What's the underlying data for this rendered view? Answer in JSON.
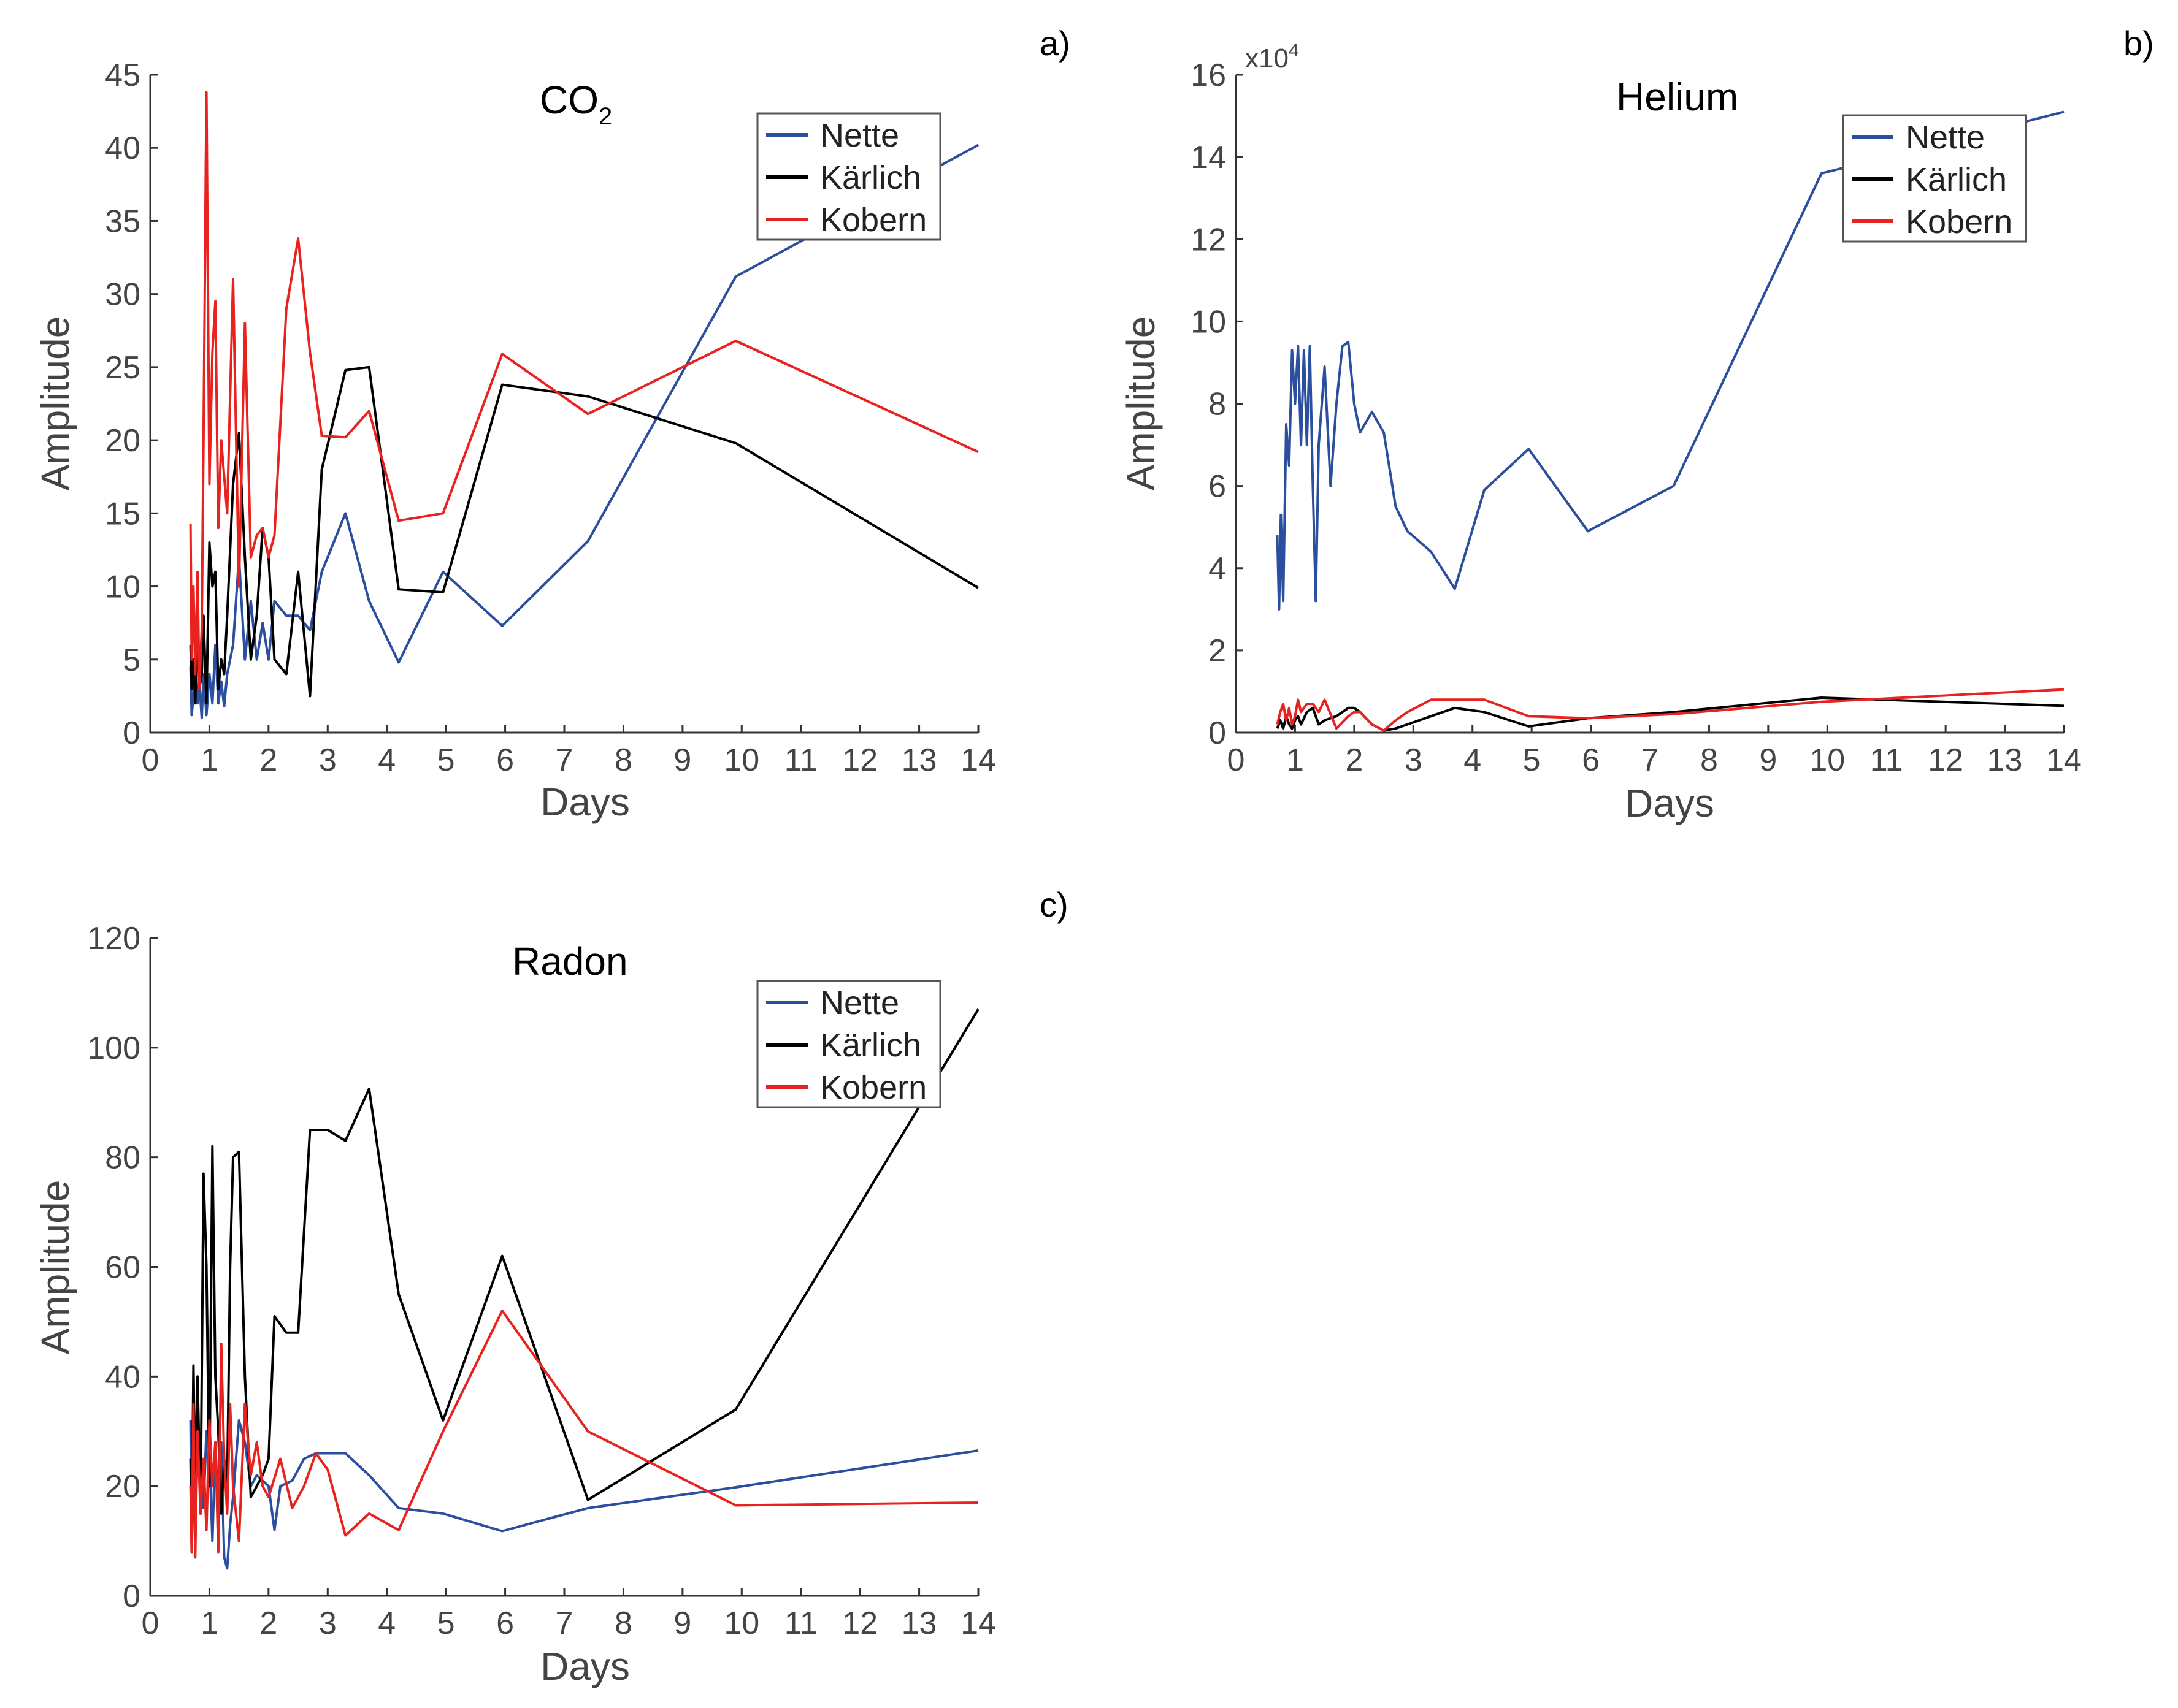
{
  "colors": {
    "nette": "#2b4f9e",
    "karlich": "#000000",
    "kobern": "#e8231f",
    "axis": "#333333",
    "tick_text": "#444444"
  },
  "chart_data": [
    {
      "panel_label": "a)",
      "type": "line",
      "title_main": "CO",
      "title_sub": "2",
      "xlabel": "Days",
      "ylabel": "Amplitude",
      "xlim": [
        0,
        14
      ],
      "ylim": [
        0,
        45
      ],
      "xticks": [
        0,
        1,
        2,
        3,
        4,
        5,
        6,
        7,
        8,
        9,
        10,
        11,
        12,
        13,
        14
      ],
      "yticks": [
        0,
        5,
        10,
        15,
        20,
        25,
        30,
        35,
        40,
        45
      ],
      "y_exponent": "",
      "legend_position": "top-right",
      "series": [
        {
          "name": "Nette",
          "color_key": "nette",
          "x": [
            0.68,
            0.7,
            0.73,
            0.76,
            0.8,
            0.83,
            0.87,
            0.9,
            0.95,
            1.0,
            1.05,
            1.1,
            1.15,
            1.2,
            1.25,
            1.3,
            1.4,
            1.5,
            1.6,
            1.7,
            1.8,
            1.9,
            2.0,
            2.1,
            2.3,
            2.5,
            2.7,
            2.9,
            3.3,
            3.7,
            4.2,
            4.95,
            5.95,
            7.4,
            9.9,
            14
          ],
          "y": [
            4.5,
            1.2,
            2.5,
            5,
            2,
            3.5,
            1,
            4,
            1.2,
            4,
            2,
            6,
            2,
            3.5,
            1.8,
            4,
            6,
            12,
            5,
            9,
            5,
            7.5,
            5,
            9,
            8,
            8,
            7,
            11,
            15,
            9,
            4.8,
            11,
            7.3,
            13.1,
            31.2,
            40.2
          ]
        },
        {
          "name": "Kärlich",
          "color_key": "karlich",
          "x": [
            0.68,
            0.7,
            0.73,
            0.76,
            0.8,
            0.83,
            0.87,
            0.9,
            0.95,
            1.0,
            1.05,
            1.1,
            1.15,
            1.2,
            1.25,
            1.3,
            1.4,
            1.5,
            1.6,
            1.7,
            1.8,
            1.9,
            2.0,
            2.1,
            2.3,
            2.5,
            2.7,
            2.9,
            3.3,
            3.7,
            4.2,
            4.95,
            5.95,
            7.4,
            9.9,
            14
          ],
          "y": [
            6,
            3,
            5,
            2,
            7,
            3,
            4,
            8,
            2,
            13,
            10,
            11,
            3,
            5,
            4,
            8,
            17,
            20.5,
            12,
            5,
            8,
            14,
            12,
            5,
            4,
            11,
            2.5,
            18,
            24.8,
            25,
            9.8,
            9.6,
            23.8,
            23,
            19.8,
            9.9
          ]
        },
        {
          "name": "Kobern",
          "color_key": "kobern",
          "x": [
            0.68,
            0.7,
            0.73,
            0.76,
            0.8,
            0.83,
            0.87,
            0.9,
            0.95,
            1.0,
            1.05,
            1.1,
            1.15,
            1.2,
            1.3,
            1.4,
            1.5,
            1.6,
            1.7,
            1.8,
            1.9,
            2.0,
            2.1,
            2.3,
            2.5,
            2.7,
            2.9,
            3.3,
            3.7,
            4.2,
            4.95,
            5.95,
            7.4,
            9.9,
            14
          ],
          "y": [
            14.3,
            5,
            10,
            4,
            11,
            3,
            7,
            20,
            43.8,
            17,
            26,
            29.5,
            14,
            20,
            15,
            31,
            10,
            28,
            12,
            13.5,
            14,
            12,
            13.5,
            29,
            33.8,
            26,
            20.3,
            20.2,
            22,
            14.5,
            15,
            25.9,
            21.8,
            26.8,
            19.2
          ]
        }
      ]
    },
    {
      "panel_label": "b)",
      "type": "line",
      "title_main": "Helium",
      "title_sub": "",
      "xlabel": "Days",
      "ylabel": "Amplitude",
      "xlim": [
        0,
        14
      ],
      "ylim": [
        0,
        16
      ],
      "xticks": [
        0,
        1,
        2,
        3,
        4,
        5,
        6,
        7,
        8,
        9,
        10,
        11,
        12,
        13,
        14
      ],
      "yticks": [
        0,
        2,
        4,
        6,
        8,
        10,
        12,
        14,
        16
      ],
      "y_exponent": "x10",
      "y_exponent_power": "4",
      "legend_position": "top-right",
      "series": [
        {
          "name": "Nette",
          "color_key": "nette",
          "x": [
            0.7,
            0.73,
            0.76,
            0.8,
            0.85,
            0.9,
            0.95,
            1.0,
            1.05,
            1.1,
            1.15,
            1.2,
            1.25,
            1.3,
            1.35,
            1.4,
            1.5,
            1.6,
            1.7,
            1.8,
            1.9,
            2.0,
            2.1,
            2.3,
            2.5,
            2.7,
            2.9,
            3.3,
            3.7,
            4.2,
            4.95,
            5.95,
            7.4,
            9.9,
            14
          ],
          "y": [
            4.8,
            3,
            5.3,
            3.2,
            7.5,
            6.5,
            9.3,
            8,
            9.4,
            7,
            9.3,
            7,
            9.4,
            6,
            3.2,
            7,
            8.9,
            6,
            8,
            9.4,
            9.5,
            8,
            7.3,
            7.8,
            7.3,
            5.5,
            4.9,
            4.4,
            3.5,
            5.9,
            6.9,
            4.9,
            6,
            13.6,
            15.1
          ]
        },
        {
          "name": "Kärlich",
          "color_key": "karlich",
          "x": [
            0.7,
            0.75,
            0.8,
            0.85,
            0.9,
            0.95,
            1.0,
            1.05,
            1.1,
            1.2,
            1.3,
            1.4,
            1.5,
            1.7,
            1.9,
            2.0,
            2.1,
            2.3,
            2.5,
            2.7,
            2.9,
            3.3,
            3.7,
            4.2,
            4.95,
            5.95,
            7.4,
            9.9,
            14
          ],
          "y": [
            0.1,
            0.3,
            0.1,
            0.4,
            0.2,
            0.1,
            0.3,
            0.4,
            0.2,
            0.5,
            0.6,
            0.2,
            0.3,
            0.4,
            0.6,
            0.6,
            0.5,
            0.2,
            0.05,
            0.1,
            0.2,
            0.4,
            0.6,
            0.5,
            0.15,
            0.35,
            0.5,
            0.85,
            0.65
          ]
        },
        {
          "name": "Kobern",
          "color_key": "kobern",
          "x": [
            0.7,
            0.75,
            0.8,
            0.85,
            0.9,
            0.95,
            1.0,
            1.05,
            1.1,
            1.2,
            1.3,
            1.4,
            1.5,
            1.7,
            1.9,
            2.0,
            2.1,
            2.3,
            2.5,
            2.7,
            2.9,
            3.3,
            3.7,
            4.2,
            4.95,
            5.95,
            7.4,
            9.9,
            14
          ],
          "y": [
            0.2,
            0.5,
            0.7,
            0.3,
            0.6,
            0.2,
            0.4,
            0.8,
            0.5,
            0.7,
            0.7,
            0.5,
            0.8,
            0.1,
            0.4,
            0.5,
            0.5,
            0.2,
            0.05,
            0.3,
            0.5,
            0.8,
            0.8,
            0.8,
            0.4,
            0.35,
            0.45,
            0.75,
            1.05
          ]
        }
      ]
    },
    {
      "panel_label": "c)",
      "type": "line",
      "title_main": "Radon",
      "title_sub": "",
      "xlabel": "Days",
      "ylabel": "Amplitude",
      "xlim": [
        0,
        14
      ],
      "ylim": [
        0,
        120
      ],
      "xticks": [
        0,
        1,
        2,
        3,
        4,
        5,
        6,
        7,
        8,
        9,
        10,
        11,
        12,
        13,
        14
      ],
      "yticks": [
        0,
        20,
        40,
        60,
        80,
        100,
        120
      ],
      "y_exponent": "",
      "legend_position": "top-right",
      "series": [
        {
          "name": "Nette",
          "color_key": "nette",
          "x": [
            0.68,
            0.7,
            0.73,
            0.76,
            0.8,
            0.85,
            0.9,
            0.95,
            1.0,
            1.05,
            1.1,
            1.15,
            1.2,
            1.25,
            1.3,
            1.35,
            1.4,
            1.5,
            1.6,
            1.7,
            1.8,
            1.9,
            2.0,
            2.1,
            2.2,
            2.4,
            2.6,
            2.8,
            3.0,
            3.3,
            3.7,
            4.2,
            4.95,
            5.95,
            7.4,
            9.9,
            14
          ],
          "y": [
            32,
            8,
            22,
            12,
            30,
            25,
            16,
            30,
            26,
            10,
            28,
            15,
            28,
            7,
            5,
            13,
            18,
            32,
            28,
            20,
            22,
            21,
            20,
            12,
            20,
            21,
            25,
            26,
            26,
            26,
            22,
            16,
            15,
            11.8,
            16,
            19.8,
            26.5
          ]
        },
        {
          "name": "Kärlich",
          "color_key": "karlich",
          "x": [
            0.68,
            0.7,
            0.73,
            0.76,
            0.8,
            0.85,
            0.9,
            0.95,
            1.0,
            1.05,
            1.1,
            1.15,
            1.2,
            1.25,
            1.3,
            1.35,
            1.4,
            1.5,
            1.6,
            1.7,
            1.8,
            1.9,
            2.0,
            2.1,
            2.3,
            2.5,
            2.7,
            2.9,
            3.0,
            3.3,
            3.7,
            4.2,
            4.95,
            5.95,
            7.4,
            9.9,
            14
          ],
          "y": [
            25,
            10,
            42,
            20,
            40,
            15,
            77,
            60,
            20,
            82,
            40,
            30,
            15,
            25,
            20,
            60,
            80,
            81,
            40,
            18,
            20,
            22,
            25,
            51,
            48,
            48,
            85,
            85,
            85,
            83,
            92.5,
            55,
            32,
            62,
            17.5,
            34,
            107
          ]
        },
        {
          "name": "Kobern",
          "color_key": "kobern",
          "x": [
            0.68,
            0.7,
            0.73,
            0.76,
            0.8,
            0.85,
            0.9,
            0.95,
            1.0,
            1.05,
            1.1,
            1.15,
            1.2,
            1.25,
            1.3,
            1.35,
            1.4,
            1.5,
            1.6,
            1.7,
            1.8,
            1.9,
            2.0,
            2.2,
            2.4,
            2.6,
            2.8,
            3.0,
            3.3,
            3.7,
            4.2,
            4.95,
            5.95,
            7.4,
            9.9,
            14
          ],
          "y": [
            20,
            8,
            35,
            7,
            30,
            15,
            25,
            12,
            32,
            20,
            28,
            8,
            46,
            25,
            15,
            35,
            20,
            10,
            35,
            22,
            28,
            20,
            18,
            25,
            16,
            20,
            26,
            23,
            11,
            15,
            12,
            30,
            52,
            30,
            16.5,
            17
          ]
        }
      ]
    }
  ]
}
